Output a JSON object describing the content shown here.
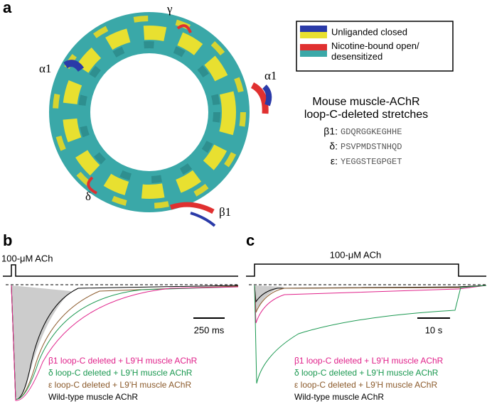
{
  "panel_a": {
    "label": "a",
    "legend": [
      "Unliganded closed",
      "Nicotine-bound open/\ndesensitized"
    ],
    "subunits": [
      "γ",
      "α1",
      "α1",
      "δ",
      "β1"
    ],
    "title": [
      "Mouse muscle-AChR",
      "loop-C-deleted stretches"
    ],
    "sequences": [
      {
        "name": "β1:",
        "seq": "GDQRGGKEGHHE"
      },
      {
        "name": "δ:",
        "seq": "PSVPMDSTNHQD"
      },
      {
        "name": "ε:",
        "seq": "YEGGSTEGPGET"
      }
    ]
  },
  "panel_b": {
    "label": "b",
    "stimulus": "100-μM ACh",
    "scale": "250 ms",
    "legend": [
      "β1 loop-C deleted + L9’H muscle AChR",
      "δ loop-C deleted + L9’H muscle AChR",
      "ε loop-C deleted + L9’H muscle AChR",
      "Wild-type muscle AChR"
    ]
  },
  "panel_c": {
    "label": "c",
    "stimulus": "100-μM ACh",
    "scale": "10 s",
    "legend": [
      "β1 loop-C deleted + L9’H muscle AChR",
      "δ loop-C deleted + L9’H muscle AChR",
      "ε loop-C deleted + L9’H muscle AChR",
      "Wild-type muscle AChR"
    ]
  }
}
